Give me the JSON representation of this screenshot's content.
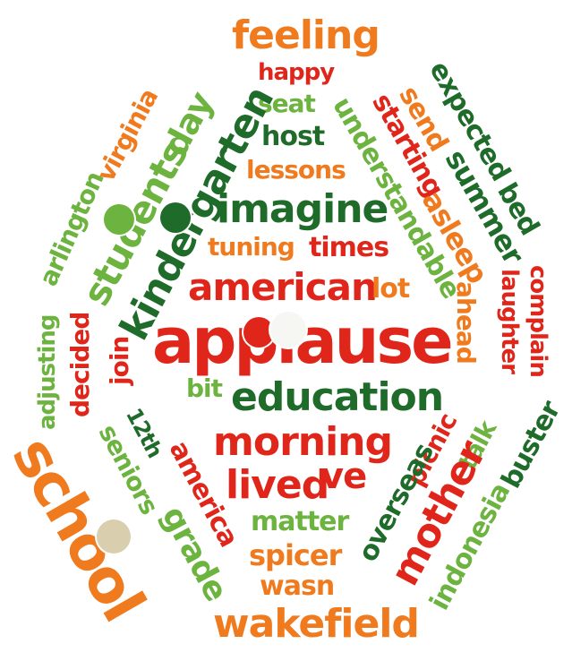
{
  "palette": {
    "orange": "#f07a1e",
    "red": "#e0261b",
    "light_green": "#6db33f",
    "dark_green": "#1e6b2a",
    "white": "#ffffff"
  },
  "words": [
    {
      "id": "feeling",
      "text": "feeling",
      "color": "orange"
    },
    {
      "id": "happy",
      "text": "happy",
      "color": "red"
    },
    {
      "id": "seat",
      "text": "seat",
      "color": "light_green"
    },
    {
      "id": "host",
      "text": "host",
      "color": "dark_green"
    },
    {
      "id": "lessons",
      "text": "lessons",
      "color": "orange"
    },
    {
      "id": "imagine",
      "text": "imagine",
      "color": "dark_green"
    },
    {
      "id": "tuning",
      "text": "tuning",
      "color": "orange"
    },
    {
      "id": "times",
      "text": "times",
      "color": "red"
    },
    {
      "id": "american",
      "text": "american",
      "color": "red"
    },
    {
      "id": "lot",
      "text": "lot",
      "color": "orange"
    },
    {
      "id": "applause",
      "text": "applause",
      "color": "red"
    },
    {
      "id": "bit",
      "text": "bit",
      "color": "light_green"
    },
    {
      "id": "education",
      "text": "education",
      "color": "dark_green"
    },
    {
      "id": "morning",
      "text": "morning",
      "color": "red"
    },
    {
      "id": "lived",
      "text": "lived",
      "color": "red"
    },
    {
      "id": "ve",
      "text": "ve",
      "color": "red"
    },
    {
      "id": "matter",
      "text": "matter",
      "color": "light_green"
    },
    {
      "id": "spicer",
      "text": "spicer",
      "color": "orange"
    },
    {
      "id": "wasn",
      "text": "wasn",
      "color": "orange"
    },
    {
      "id": "wakefield",
      "text": "wakefield",
      "color": "orange"
    },
    {
      "id": "virginia",
      "text": "virginia",
      "color": "orange"
    },
    {
      "id": "day",
      "text": "day",
      "color": "light_green"
    },
    {
      "id": "students",
      "text": "students",
      "color": "light_green"
    },
    {
      "id": "kindergarten",
      "text": "kindergarten",
      "color": "dark_green"
    },
    {
      "id": "arlington",
      "text": "arlington",
      "color": "light_green"
    },
    {
      "id": "adjusting",
      "text": "adjusting",
      "color": "light_green"
    },
    {
      "id": "decided",
      "text": "decided",
      "color": "red"
    },
    {
      "id": "join",
      "text": "join",
      "color": "red"
    },
    {
      "id": "12th",
      "text": "12th",
      "color": "dark_green"
    },
    {
      "id": "seniors",
      "text": "seniors",
      "color": "light_green"
    },
    {
      "id": "america",
      "text": "america",
      "color": "red"
    },
    {
      "id": "grade",
      "text": "grade",
      "color": "light_green"
    },
    {
      "id": "school",
      "text": "school",
      "color": "orange"
    },
    {
      "id": "expected",
      "text": "expected",
      "color": "dark_green"
    },
    {
      "id": "bed",
      "text": "bed",
      "color": "dark_green"
    },
    {
      "id": "send",
      "text": "send",
      "color": "orange"
    },
    {
      "id": "summer",
      "text": "summer",
      "color": "dark_green"
    },
    {
      "id": "starting",
      "text": "starting",
      "color": "red"
    },
    {
      "id": "understandable",
      "text": "understandable",
      "color": "light_green"
    },
    {
      "id": "asleep",
      "text": "asleep",
      "color": "orange"
    },
    {
      "id": "complain",
      "text": "complain",
      "color": "red"
    },
    {
      "id": "laughter",
      "text": "laughter",
      "color": "red"
    },
    {
      "id": "ahead",
      "text": "ahead",
      "color": "orange"
    },
    {
      "id": "picnic",
      "text": "picnic",
      "color": "red"
    },
    {
      "id": "talk",
      "text": "talk",
      "color": "light_green"
    },
    {
      "id": "overseas",
      "text": "overseas",
      "color": "dark_green"
    },
    {
      "id": "mother",
      "text": "mother",
      "color": "red"
    },
    {
      "id": "buster",
      "text": "buster",
      "color": "dark_green"
    },
    {
      "id": "indonesia",
      "text": "indonesia",
      "color": "light_green"
    }
  ],
  "markers": [
    {
      "id": "marker-students",
      "color": "#6db33f"
    },
    {
      "id": "marker-kindergarten",
      "color": "#1e6b2a"
    },
    {
      "id": "marker-applause-red",
      "color": "#e0261b"
    },
    {
      "id": "marker-applause-white",
      "color": "#f6f6f2"
    },
    {
      "id": "marker-school",
      "color": "#d9cfae"
    }
  ]
}
